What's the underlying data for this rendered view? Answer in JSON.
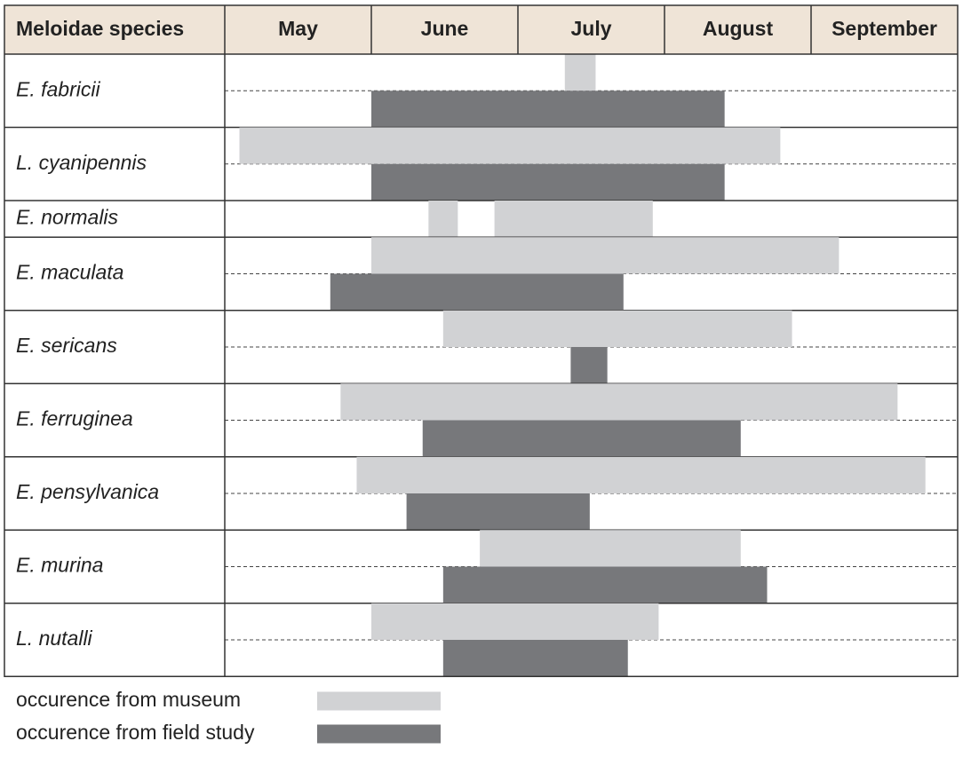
{
  "chart_data": {
    "type": "gantt",
    "y_label": "Meloidae species",
    "xlim": [
      0,
      5
    ],
    "xticks": [
      {
        "value": 0.5,
        "label": "May"
      },
      {
        "value": 1.5,
        "label": "June"
      },
      {
        "value": 2.5,
        "label": "July"
      },
      {
        "value": 3.5,
        "label": "August"
      },
      {
        "value": 4.5,
        "label": "September"
      }
    ],
    "categories": [
      "E. fabricii",
      "L. cyanipennis",
      "E. normalis",
      "E. maculata",
      "E. sericans",
      "E. ferruginea",
      "E. pensylvanica",
      "E. murina",
      "L. nutalli"
    ],
    "series": [
      {
        "name": "occurence from museum",
        "color": "#d1d2d4",
        "values": [
          [
            [
              2.32,
              2.53
            ]
          ],
          [
            [
              0.1,
              3.79
            ]
          ],
          [
            [
              1.39,
              1.59
            ],
            [
              1.84,
              2.92
            ]
          ],
          [
            [
              1.0,
              4.19
            ]
          ],
          [
            [
              1.49,
              3.87
            ]
          ],
          [
            [
              0.79,
              4.59
            ]
          ],
          [
            [
              0.9,
              4.78
            ]
          ],
          [
            [
              1.74,
              3.52
            ]
          ],
          [
            [
              1.0,
              2.96
            ]
          ]
        ]
      },
      {
        "name": "occurence from field study",
        "color": "#77787b",
        "values": [
          [
            [
              1.0,
              3.41
            ]
          ],
          [
            [
              1.0,
              3.41
            ]
          ],
          [],
          [
            [
              0.72,
              2.72
            ]
          ],
          [
            [
              2.36,
              2.61
            ]
          ],
          [
            [
              1.35,
              3.52
            ]
          ],
          [
            [
              1.24,
              2.49
            ]
          ],
          [
            [
              1.49,
              3.7
            ]
          ],
          [
            [
              1.49,
              2.75
            ]
          ]
        ]
      }
    ]
  }
}
